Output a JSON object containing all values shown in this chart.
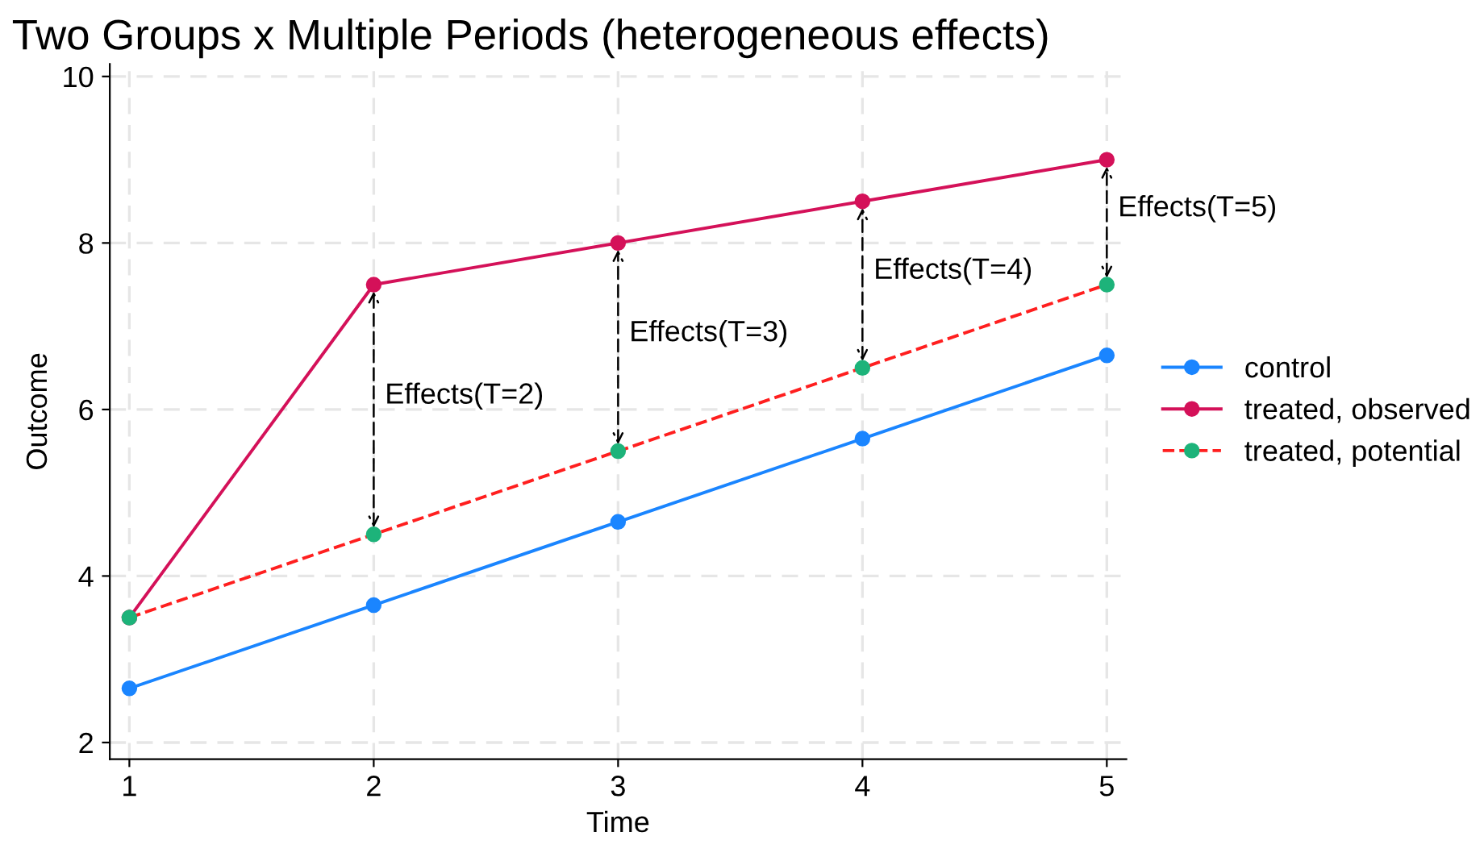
{
  "chart_data": {
    "type": "line",
    "title": "Two Groups x Multiple Periods (heterogeneous effects)",
    "xlabel": "Time",
    "ylabel": "Outcome",
    "x": [
      1,
      2,
      3,
      4,
      5
    ],
    "series": [
      {
        "name": "control",
        "color": "#1a85ff",
        "values": [
          2.65,
          3.65,
          4.65,
          5.65,
          6.65
        ],
        "line_style": "solid"
      },
      {
        "name": "treated, observed",
        "color": "#d41159",
        "values": [
          3.5,
          7.5,
          8,
          8.5,
          9
        ],
        "line_style": "solid"
      },
      {
        "name": "treated, potential",
        "color": "#ff1f1f",
        "colors": [
          "#1db37a",
          "#1db37a",
          "#1db37a",
          "#1db37a",
          "#1db37a"
        ],
        "values": [
          3.5,
          4.5,
          5.5,
          6.5,
          7.5
        ],
        "line_style": "dashed"
      }
    ],
    "annotations": [
      "Effects(T=2)",
      {
        "text": "Effects(T=3)",
        "x": 3,
        "y": 8
      },
      {
        "text": "Effects(T=4)",
        "x": 4,
        "y": 8.5
      },
      {
        "text": "Effects(T=5)",
        "x": 5,
        "y": 9
      }
    ],
    "xlim": [
      0.92,
      5.08
    ],
    "ylim": [
      1.8,
      10.15
    ],
    "xticks": [
      1,
      2,
      3,
      4,
      5
    ],
    "yticks": [
      2,
      4,
      6,
      8,
      10
    ],
    "grid": true,
    "legend": "right",
    "marker": "circle"
  }
}
